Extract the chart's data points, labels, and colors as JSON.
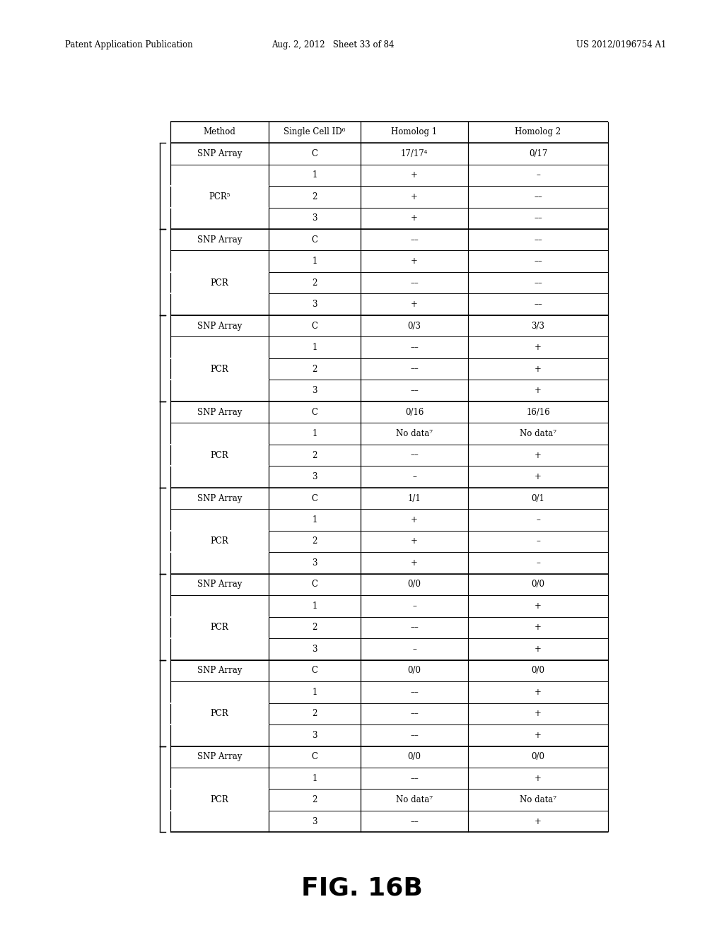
{
  "title": "FIG. 16B",
  "patent_header_left": "Patent Application Publication",
  "patent_header_mid": "Aug. 2, 2012   Sheet 33 of 84",
  "patent_header_right": "US 2012/0196754 A1",
  "col_headers": [
    "Method",
    "Single Cell ID⁶",
    "Homolog 1",
    "Homolog 2"
  ],
  "groups": [
    {
      "snp_row": [
        "SNP Array",
        "C",
        "17/17⁴",
        "0/17"
      ],
      "pcr_label": "PCR⁵",
      "pcr_rows": [
        [
          "1",
          "+",
          "–"
        ],
        [
          "2",
          "+",
          "––"
        ],
        [
          "3",
          "+",
          "––"
        ]
      ]
    },
    {
      "snp_row": [
        "SNP Array",
        "C",
        "––",
        "––"
      ],
      "pcr_label": "PCR",
      "pcr_rows": [
        [
          "1",
          "+",
          "––"
        ],
        [
          "2",
          "––",
          "––"
        ],
        [
          "3",
          "+",
          "––"
        ]
      ]
    },
    {
      "snp_row": [
        "SNP Array",
        "C",
        "0/3",
        "3/3"
      ],
      "pcr_label": "PCR",
      "pcr_rows": [
        [
          "1",
          "––",
          "+"
        ],
        [
          "2",
          "––",
          "+"
        ],
        [
          "3",
          "––",
          "+"
        ]
      ]
    },
    {
      "snp_row": [
        "SNP Array",
        "C",
        "0/16",
        "16/16"
      ],
      "pcr_label": "PCR",
      "pcr_rows": [
        [
          "1",
          "No data⁷",
          "No data⁷"
        ],
        [
          "2",
          "––",
          "+"
        ],
        [
          "3",
          "–",
          "+"
        ]
      ]
    },
    {
      "snp_row": [
        "SNP Array",
        "C",
        "1/1",
        "0/1"
      ],
      "pcr_label": "PCR",
      "pcr_rows": [
        [
          "1",
          "+",
          "–"
        ],
        [
          "2",
          "+",
          "–"
        ],
        [
          "3",
          "+",
          "–"
        ]
      ]
    },
    {
      "snp_row": [
        "SNP Array",
        "C",
        "0/0",
        "0/0"
      ],
      "pcr_label": "PCR",
      "pcr_rows": [
        [
          "1",
          "–",
          "+"
        ],
        [
          "2",
          "––",
          "+"
        ],
        [
          "3",
          "–",
          "+"
        ]
      ]
    },
    {
      "snp_row": [
        "SNP Array",
        "C",
        "0/0",
        "0/0"
      ],
      "pcr_label": "PCR",
      "pcr_rows": [
        [
          "1",
          "––",
          "+"
        ],
        [
          "2",
          "––",
          "+"
        ],
        [
          "3",
          "––",
          "+"
        ]
      ]
    },
    {
      "snp_row": [
        "SNP Array",
        "C",
        "0/0",
        "0/0"
      ],
      "pcr_label": "PCR",
      "pcr_rows": [
        [
          "1",
          "––",
          "+"
        ],
        [
          "2",
          "No data⁷",
          "No data⁷"
        ],
        [
          "3",
          "––",
          "+"
        ]
      ]
    }
  ],
  "tl": 0.235,
  "tr": 0.84,
  "tt": 0.87,
  "tb": 0.108
}
